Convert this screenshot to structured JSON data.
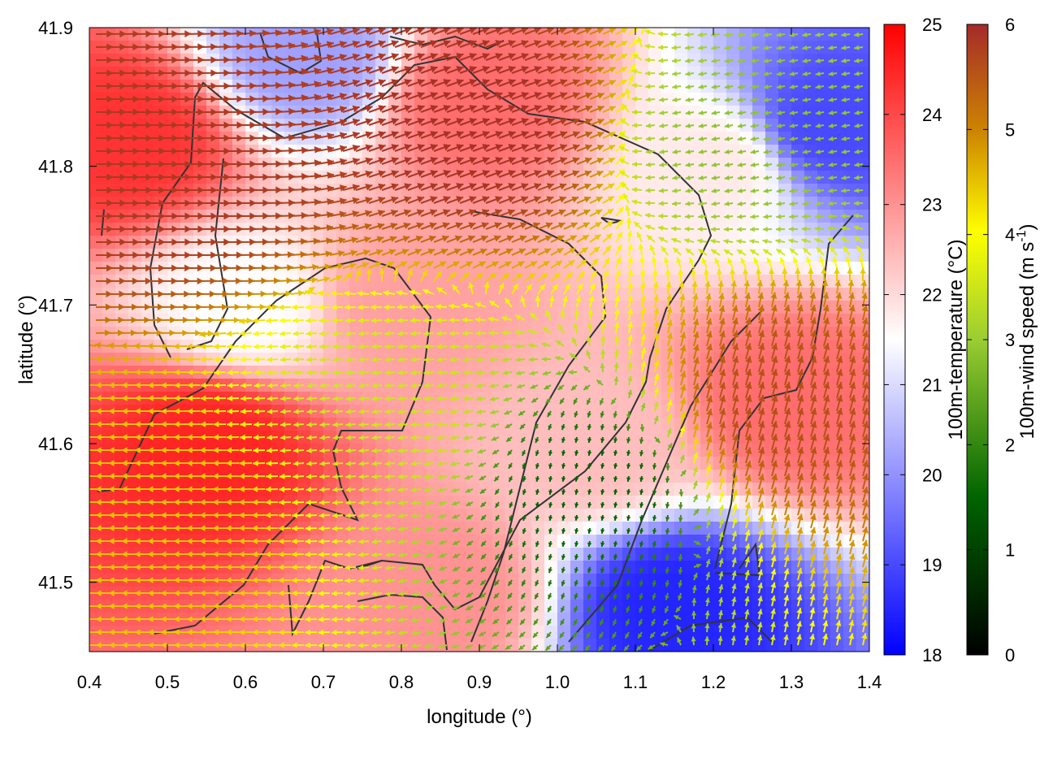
{
  "chart_data": {
    "type": "heatmap",
    "title": "",
    "xlabel": "longitude (°)",
    "ylabel": "latitude (°)",
    "xlim": [
      0.4,
      1.4
    ],
    "ylim": [
      41.45,
      41.9
    ],
    "xticks": [
      0.4,
      0.5,
      0.6,
      0.7,
      0.8,
      0.9,
      1.0,
      1.1,
      1.2,
      1.3,
      1.4
    ],
    "xtick_labels": [
      "0.4",
      "0.5",
      "0.6",
      "0.7",
      "0.8",
      "0.9",
      "1.0",
      "1.1",
      "1.2",
      "1.3",
      "1.4"
    ],
    "yticks": [
      41.5,
      41.6,
      41.7,
      41.8,
      41.9
    ],
    "ytick_labels": [
      "41.5",
      "41.6",
      "41.7",
      "41.8",
      "41.9"
    ],
    "temperature_colorbar": {
      "label": "100m-temperature (°C)",
      "range": [
        18,
        25
      ],
      "ticks": [
        18,
        19,
        20,
        21,
        22,
        23,
        24,
        25
      ],
      "tick_labels": [
        "18",
        "19",
        "20",
        "21",
        "22",
        "23",
        "24",
        "25"
      ],
      "colors": [
        "#0000ff",
        "#ffffff",
        "#ff0000"
      ]
    },
    "wind_speed_colorbar": {
      "label_main": "100m-wind speed (m s",
      "label_sup": "-1",
      "label_end": ")",
      "range": [
        0,
        6
      ],
      "ticks": [
        0,
        1,
        2,
        3,
        4,
        5,
        6
      ],
      "tick_labels": [
        "0",
        "1",
        "2",
        "3",
        "4",
        "5",
        "6"
      ],
      "colors": [
        "#000000",
        "#006400",
        "#9acd32",
        "#ffff00",
        "#cd8500",
        "#a52a2a"
      ]
    },
    "temperature_regions": [
      {
        "lon": 0.45,
        "lat": 41.82,
        "t": 24.3
      },
      {
        "lon": 0.55,
        "lat": 41.6,
        "t": 24.5
      },
      {
        "lon": 0.9,
        "lat": 41.85,
        "t": 23.5
      },
      {
        "lon": 0.8,
        "lat": 41.7,
        "t": 22.8
      },
      {
        "lon": 1.05,
        "lat": 41.6,
        "t": 22.4
      },
      {
        "lon": 1.2,
        "lat": 41.8,
        "t": 21.8
      },
      {
        "lon": 1.35,
        "lat": 41.83,
        "t": 19.0
      },
      {
        "lon": 1.3,
        "lat": 41.63,
        "t": 23.5
      },
      {
        "lon": 1.15,
        "lat": 41.48,
        "t": 18.5
      },
      {
        "lon": 0.6,
        "lat": 41.7,
        "t": 21.5
      },
      {
        "lon": 0.68,
        "lat": 41.88,
        "t": 20.2
      },
      {
        "lon": 0.85,
        "lat": 41.49,
        "t": 23.0
      }
    ],
    "wind_regimes": [
      {
        "region": "north-west",
        "direction_deg": 0,
        "speed": 5.8
      },
      {
        "region": "north-centre",
        "direction_deg": 20,
        "speed": 5.9
      },
      {
        "region": "centre",
        "direction_deg": 185,
        "speed": 3.0
      },
      {
        "region": "south-east-centre",
        "direction_deg": 260,
        "speed": 1.2
      },
      {
        "region": "east",
        "direction_deg": 75,
        "speed": 5.5
      },
      {
        "region": "south-west",
        "direction_deg": 180,
        "speed": 4.2
      },
      {
        "region": "north-east",
        "direction_deg": 190,
        "speed": 2.3
      }
    ]
  }
}
